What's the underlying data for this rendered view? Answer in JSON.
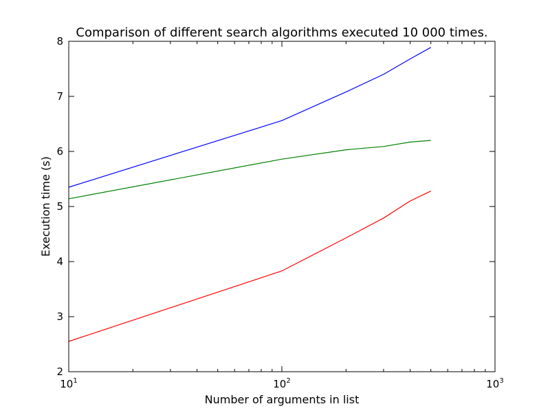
{
  "chart_data": {
    "type": "line",
    "title": "Comparison of different search algorithms executed 10 000 times.",
    "xlabel": "Number of arguments in list",
    "ylabel": "Execution time (s)",
    "xscale": "log",
    "xlim": [
      10,
      1000
    ],
    "ylim": [
      2,
      8
    ],
    "x_ticks": [
      {
        "base": "10",
        "exp": "1",
        "value": 10
      },
      {
        "base": "10",
        "exp": "2",
        "value": 100
      },
      {
        "base": "10",
        "exp": "3",
        "value": 1000
      }
    ],
    "y_ticks": [
      2,
      3,
      4,
      5,
      6,
      7,
      8
    ],
    "grid": false,
    "legend": "none",
    "x": [
      10,
      100,
      200,
      300,
      400,
      500
    ],
    "series": [
      {
        "color": "#0000ff",
        "values": [
          5.35,
          6.56,
          7.08,
          7.4,
          7.68,
          7.89
        ]
      },
      {
        "color": "#008000",
        "values": [
          5.14,
          5.86,
          6.03,
          6.09,
          6.17,
          6.2
        ]
      },
      {
        "color": "#ff0000",
        "values": [
          2.55,
          3.83,
          4.43,
          4.79,
          5.1,
          5.28
        ]
      }
    ]
  }
}
